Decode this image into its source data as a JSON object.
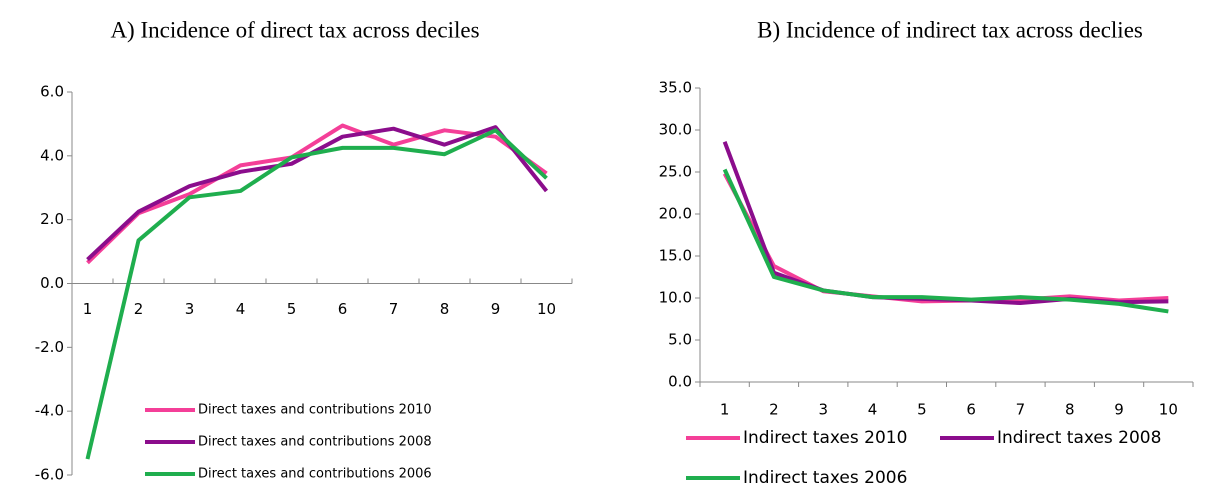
{
  "chart_data": [
    {
      "type": "line",
      "title": "A)  Incidence of direct tax across deciles",
      "categories": [
        "1",
        "2",
        "3",
        "4",
        "5",
        "6",
        "7",
        "8",
        "9",
        "10"
      ],
      "series": [
        {
          "name": "Direct taxes and contributions 2010",
          "color": "#f43f98",
          "values": [
            0.65,
            2.2,
            2.8,
            3.7,
            3.95,
            4.95,
            4.35,
            4.8,
            4.6,
            3.45
          ]
        },
        {
          "name": "Direct taxes and contributions 2008",
          "color": "#8b0d8c",
          "values": [
            0.75,
            2.25,
            3.05,
            3.5,
            3.75,
            4.6,
            4.85,
            4.35,
            4.9,
            2.9
          ]
        },
        {
          "name": "Direct taxes and contributions 2006",
          "color": "#1fae4e",
          "values": [
            -5.5,
            1.35,
            2.7,
            2.9,
            3.95,
            4.25,
            4.25,
            4.05,
            4.8,
            3.3
          ]
        }
      ],
      "ylim": [
        -6,
        6
      ],
      "yticks": [
        {
          "value": -6,
          "label": "-6.0"
        },
        {
          "value": -4,
          "label": "-4.0"
        },
        {
          "value": -2,
          "label": "-2.0"
        },
        {
          "value": 0,
          "label": "0.0"
        },
        {
          "value": 2,
          "label": "2.0"
        },
        {
          "value": 4,
          "label": "4.0"
        },
        {
          "value": 6,
          "label": "6.0"
        }
      ]
    },
    {
      "type": "line",
      "title": "B)  Incidence of indirect tax across declies",
      "categories": [
        "1",
        "2",
        "3",
        "4",
        "5",
        "6",
        "7",
        "8",
        "9",
        "10"
      ],
      "series": [
        {
          "name": "Indirect taxes 2010",
          "color": "#f43f98",
          "values": [
            24.8,
            13.8,
            10.8,
            10.2,
            9.6,
            9.7,
            9.8,
            10.2,
            9.7,
            10.0
          ]
        },
        {
          "name": "Indirect taxes 2008",
          "color": "#8b0d8c",
          "values": [
            28.6,
            13.0,
            10.9,
            10.1,
            9.9,
            9.7,
            9.4,
            9.9,
            9.5,
            9.6
          ]
        },
        {
          "name": "Indirect taxes 2006",
          "color": "#1fae4e",
          "values": [
            25.3,
            12.5,
            10.9,
            10.1,
            10.1,
            9.8,
            10.1,
            9.8,
            9.3,
            8.4
          ]
        }
      ],
      "ylim": [
        0,
        35
      ],
      "yticks": [
        {
          "value": 0,
          "label": "0.0"
        },
        {
          "value": 5,
          "label": "5.0"
        },
        {
          "value": 10,
          "label": "10.0"
        },
        {
          "value": 15,
          "label": "15.0"
        },
        {
          "value": 20,
          "label": "20.0"
        },
        {
          "value": 25,
          "label": "25.0"
        },
        {
          "value": 30,
          "label": "30.0"
        },
        {
          "value": 35,
          "label": "35.0"
        }
      ]
    }
  ]
}
